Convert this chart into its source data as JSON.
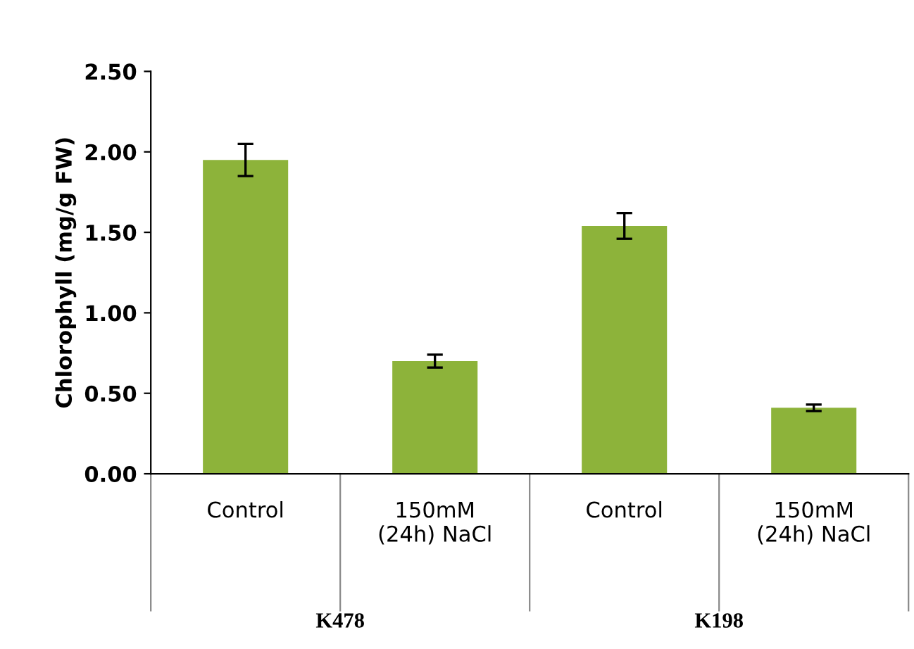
{
  "chart_data": {
    "type": "bar",
    "ylabel": "Chlorophyll (mg/g FW)",
    "categories": [
      "Control",
      "150mM\n(24h) NaCl",
      "Control",
      "150mM\n(24h) NaCl"
    ],
    "values": [
      1.95,
      0.7,
      1.54,
      0.41
    ],
    "errors": [
      0.1,
      0.04,
      0.08,
      0.02
    ],
    "color": "#8db33a",
    "ylim": [
      0,
      2.5
    ],
    "yticks": [
      {
        "value": 0,
        "label": "0.00"
      },
      {
        "value": 0.5,
        "label": "0.50"
      },
      {
        "value": 1,
        "label": "1.00"
      },
      {
        "value": 1.5,
        "label": "1.50"
      },
      {
        "value": 2,
        "label": "2.00"
      },
      {
        "value": 2.5,
        "label": "2.50"
      }
    ],
    "annotations": [
      "K478",
      "K198"
    ],
    "grid": false,
    "legend": false
  }
}
